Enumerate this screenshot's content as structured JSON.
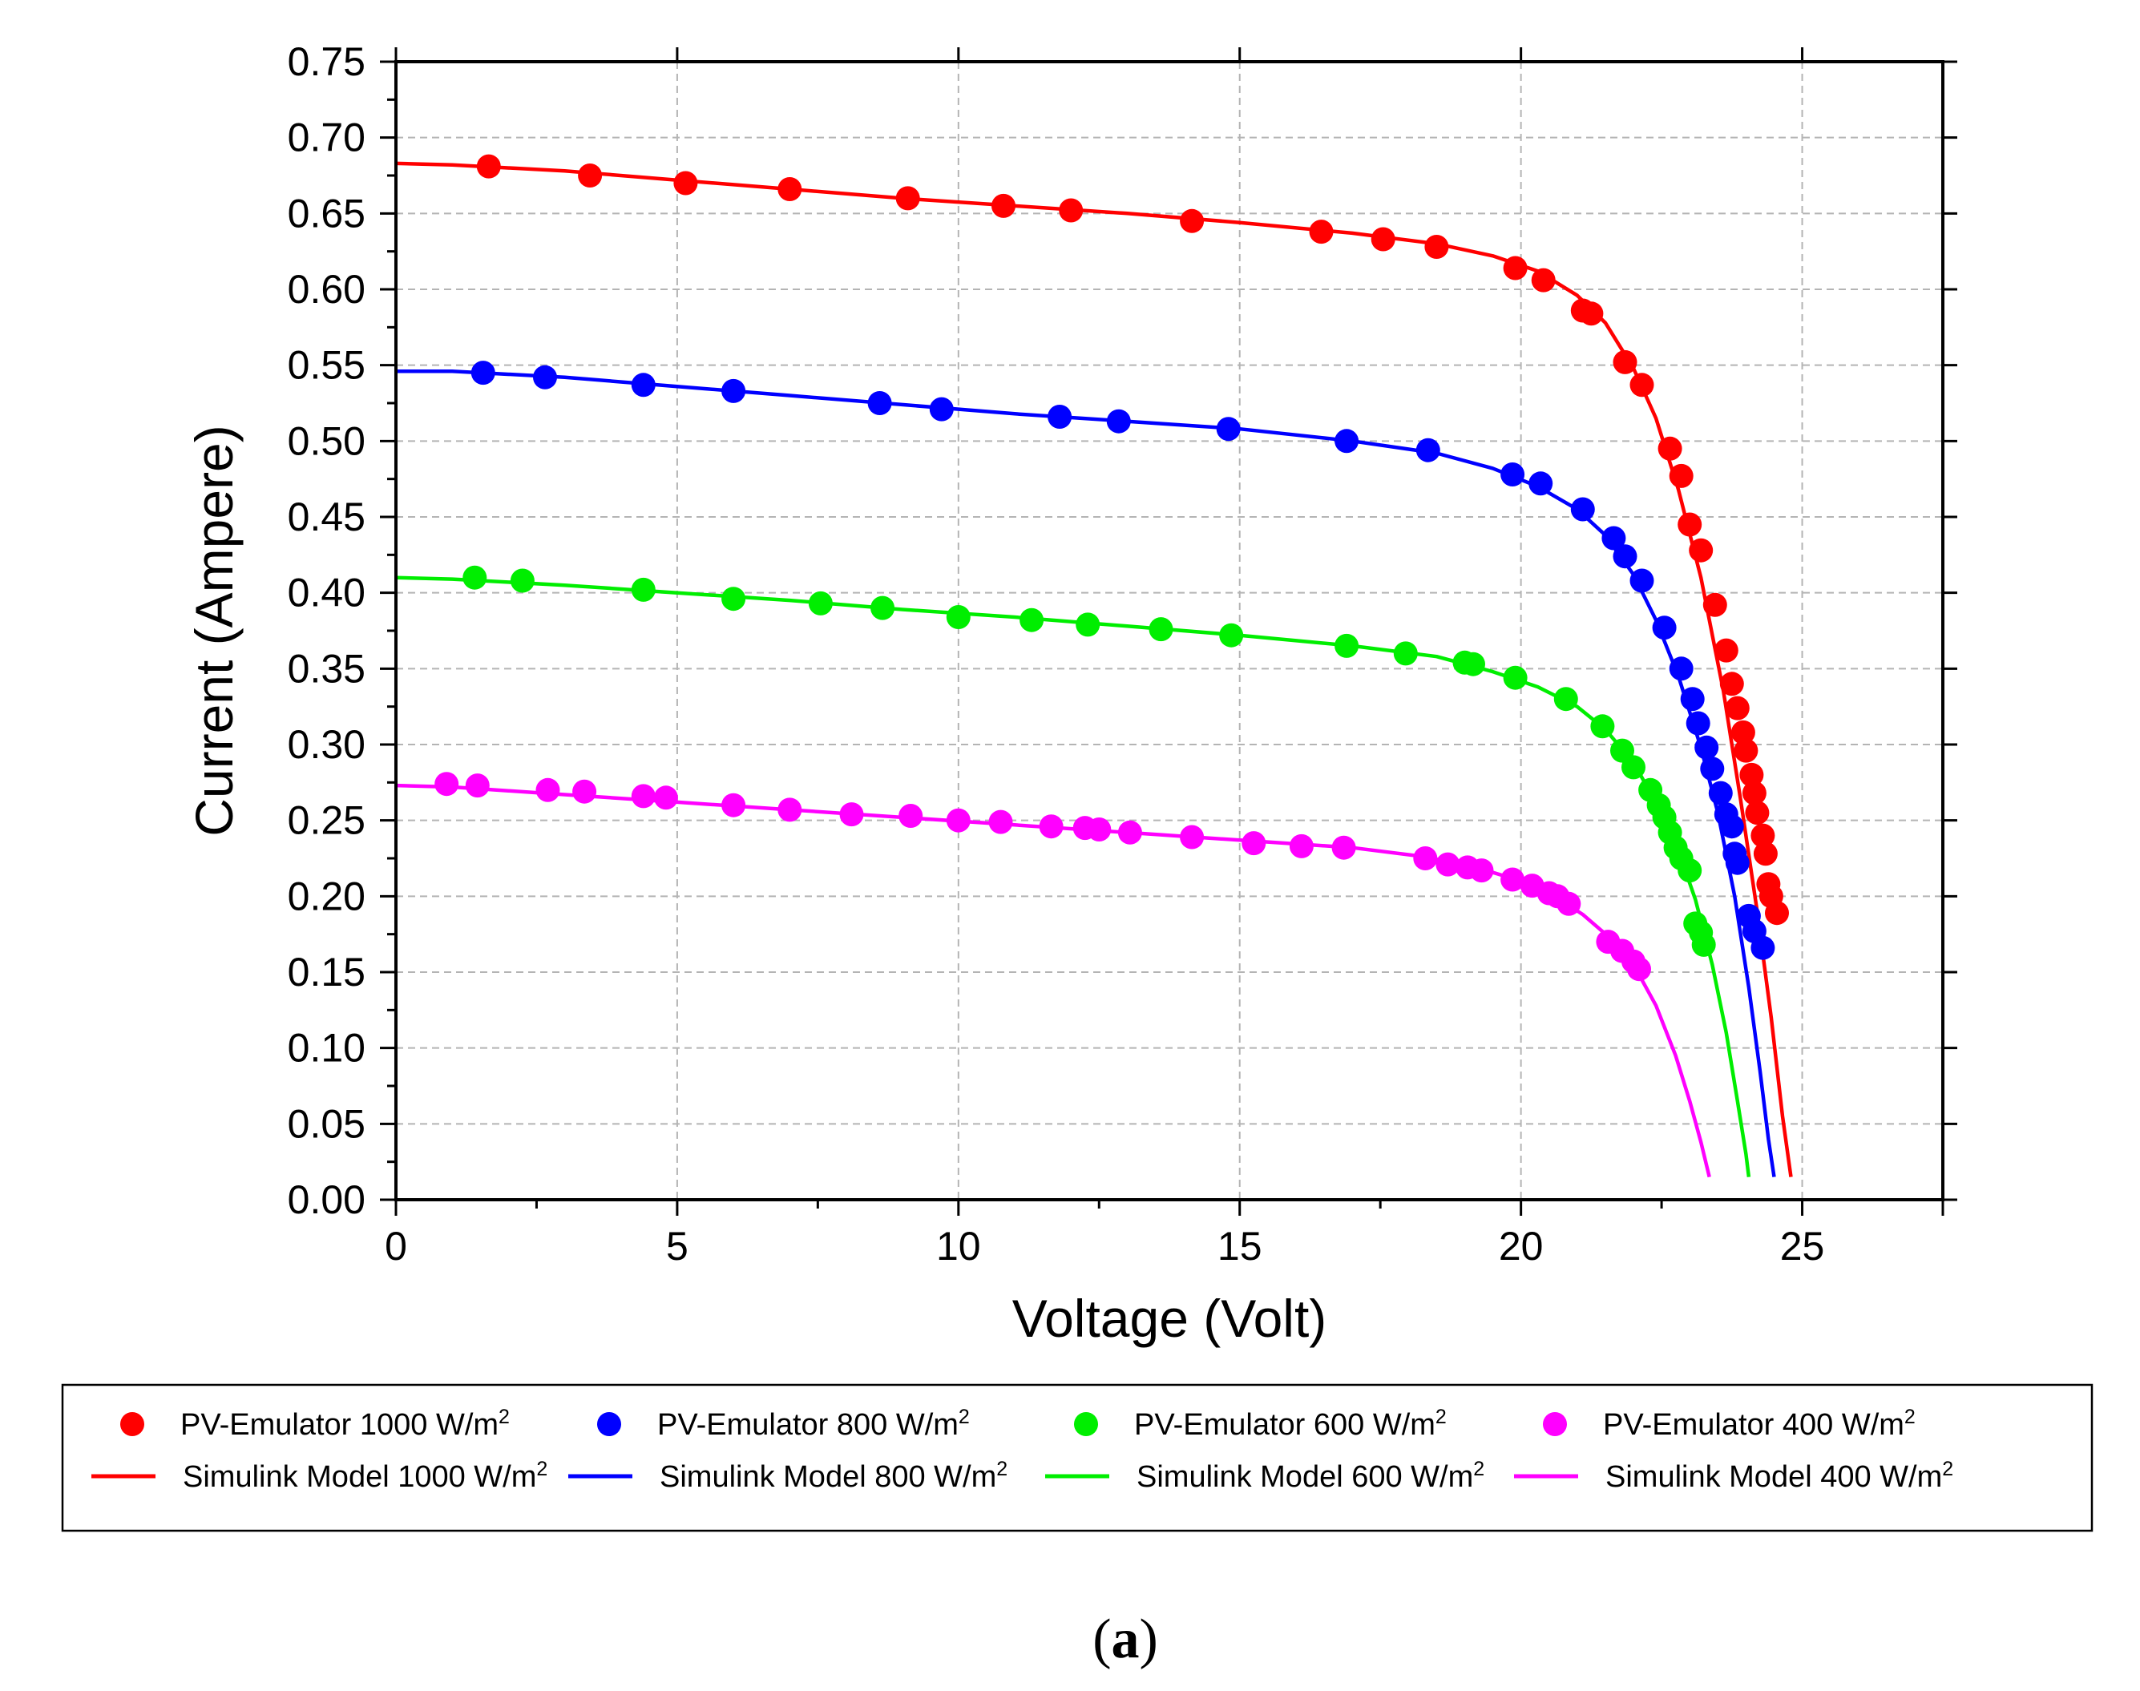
{
  "chart_data": {
    "type": "line",
    "title": "",
    "xlabel": "Voltage (Volt)",
    "ylabel": "Current (Ampere)",
    "xlim": [
      0,
      27.5
    ],
    "ylim": [
      0,
      0.75
    ],
    "xticks": [
      0,
      5,
      10,
      15,
      20,
      25
    ],
    "xtick_labels": [
      "0",
      "5",
      "10",
      "15",
      "20",
      "25"
    ],
    "yticks": [
      0,
      0.05,
      0.1,
      0.15,
      0.2,
      0.25,
      0.3,
      0.35,
      0.4,
      0.45,
      0.5,
      0.55,
      0.6,
      0.65,
      0.7,
      0.75
    ],
    "ytick_labels": [
      "0.00",
      "0.05",
      "0.10",
      "0.15",
      "0.20",
      "0.25",
      "0.30",
      "0.35",
      "0.40",
      "0.45",
      "0.50",
      "0.55",
      "0.60",
      "0.65",
      "0.70",
      "0.75"
    ],
    "grid": true,
    "legend_position": "below",
    "caption_paren_open": "(",
    "caption_letter": "a",
    "caption_paren_close": ")",
    "series": [
      {
        "name": "PV-Emulator 1000 W/m",
        "superscript": "2",
        "type": "scatter",
        "color": "#ff0000",
        "points": [
          [
            1.65,
            0.681
          ],
          [
            3.45,
            0.675
          ],
          [
            5.15,
            0.67
          ],
          [
            7.0,
            0.666
          ],
          [
            9.1,
            0.66
          ],
          [
            10.8,
            0.655
          ],
          [
            12.0,
            0.652
          ],
          [
            14.15,
            0.645
          ],
          [
            16.45,
            0.638
          ],
          [
            17.55,
            0.633
          ],
          [
            18.5,
            0.628
          ],
          [
            19.9,
            0.614
          ],
          [
            20.4,
            0.606
          ],
          [
            21.1,
            0.586
          ],
          [
            21.25,
            0.584
          ],
          [
            21.85,
            0.552
          ],
          [
            22.15,
            0.537
          ],
          [
            22.65,
            0.495
          ],
          [
            22.85,
            0.477
          ],
          [
            23.0,
            0.445
          ],
          [
            23.2,
            0.428
          ],
          [
            23.45,
            0.392
          ],
          [
            23.65,
            0.362
          ],
          [
            23.75,
            0.34
          ],
          [
            23.85,
            0.324
          ],
          [
            23.95,
            0.308
          ],
          [
            24.0,
            0.296
          ],
          [
            24.1,
            0.28
          ],
          [
            24.15,
            0.268
          ],
          [
            24.2,
            0.255
          ],
          [
            24.3,
            0.24
          ],
          [
            24.35,
            0.228
          ],
          [
            24.4,
            0.208
          ],
          [
            24.45,
            0.2
          ],
          [
            24.55,
            0.189
          ]
        ]
      },
      {
        "name": "PV-Emulator  800 W/m",
        "superscript": "2",
        "type": "scatter",
        "color": "#0000ff",
        "points": [
          [
            1.55,
            0.545
          ],
          [
            2.65,
            0.542
          ],
          [
            4.4,
            0.537
          ],
          [
            6.0,
            0.533
          ],
          [
            8.6,
            0.525
          ],
          [
            9.7,
            0.521
          ],
          [
            11.8,
            0.516
          ],
          [
            12.85,
            0.513
          ],
          [
            14.8,
            0.508
          ],
          [
            16.9,
            0.5
          ],
          [
            18.35,
            0.494
          ],
          [
            19.85,
            0.478
          ],
          [
            20.35,
            0.472
          ],
          [
            21.1,
            0.455
          ],
          [
            21.65,
            0.436
          ],
          [
            21.85,
            0.424
          ],
          [
            22.15,
            0.408
          ],
          [
            22.55,
            0.377
          ],
          [
            22.85,
            0.35
          ],
          [
            23.05,
            0.33
          ],
          [
            23.15,
            0.314
          ],
          [
            23.3,
            0.298
          ],
          [
            23.4,
            0.284
          ],
          [
            23.55,
            0.268
          ],
          [
            23.65,
            0.254
          ],
          [
            23.75,
            0.246
          ],
          [
            23.8,
            0.228
          ],
          [
            23.85,
            0.222
          ],
          [
            24.05,
            0.187
          ],
          [
            24.15,
            0.177
          ],
          [
            24.3,
            0.166
          ]
        ]
      },
      {
        "name": "PV-Emulator  600 W/m",
        "superscript": "2",
        "type": "scatter",
        "color": "#00ee00",
        "points": [
          [
            1.4,
            0.41
          ],
          [
            2.25,
            0.408
          ],
          [
            4.4,
            0.402
          ],
          [
            6.0,
            0.396
          ],
          [
            7.55,
            0.393
          ],
          [
            8.65,
            0.39
          ],
          [
            10.0,
            0.384
          ],
          [
            11.3,
            0.382
          ],
          [
            12.3,
            0.379
          ],
          [
            13.6,
            0.376
          ],
          [
            14.85,
            0.372
          ],
          [
            16.9,
            0.365
          ],
          [
            17.95,
            0.36
          ],
          [
            19.0,
            0.354
          ],
          [
            19.15,
            0.353
          ],
          [
            19.9,
            0.344
          ],
          [
            20.8,
            0.33
          ],
          [
            21.45,
            0.312
          ],
          [
            21.8,
            0.296
          ],
          [
            22.0,
            0.285
          ],
          [
            22.3,
            0.27
          ],
          [
            22.45,
            0.26
          ],
          [
            22.55,
            0.252
          ],
          [
            22.65,
            0.242
          ],
          [
            22.75,
            0.232
          ],
          [
            22.85,
            0.225
          ],
          [
            23.0,
            0.217
          ],
          [
            23.1,
            0.182
          ],
          [
            23.2,
            0.176
          ],
          [
            23.25,
            0.168
          ]
        ]
      },
      {
        "name": "PV-Emulator  400 W/m",
        "superscript": "2",
        "type": "scatter",
        "color": "#ff00ff",
        "points": [
          [
            0.9,
            0.274
          ],
          [
            1.45,
            0.273
          ],
          [
            2.7,
            0.27
          ],
          [
            3.35,
            0.269
          ],
          [
            4.4,
            0.266
          ],
          [
            4.8,
            0.265
          ],
          [
            6.0,
            0.26
          ],
          [
            7.0,
            0.257
          ],
          [
            8.1,
            0.254
          ],
          [
            9.15,
            0.253
          ],
          [
            10.0,
            0.25
          ],
          [
            10.75,
            0.249
          ],
          [
            11.65,
            0.246
          ],
          [
            12.25,
            0.245
          ],
          [
            12.5,
            0.244
          ],
          [
            13.05,
            0.242
          ],
          [
            14.15,
            0.239
          ],
          [
            15.25,
            0.235
          ],
          [
            16.1,
            0.233
          ],
          [
            16.85,
            0.232
          ],
          [
            18.3,
            0.225
          ],
          [
            18.7,
            0.221
          ],
          [
            19.05,
            0.219
          ],
          [
            19.3,
            0.217
          ],
          [
            19.85,
            0.211
          ],
          [
            20.2,
            0.207
          ],
          [
            20.5,
            0.202
          ],
          [
            20.65,
            0.2
          ],
          [
            20.85,
            0.195
          ],
          [
            21.55,
            0.17
          ],
          [
            21.8,
            0.164
          ],
          [
            22.0,
            0.157
          ],
          [
            22.1,
            0.152
          ]
        ]
      },
      {
        "name": "Simulink Model 1000 W/m",
        "superscript": "2",
        "type": "line",
        "color": "#ff0000",
        "points": [
          [
            0,
            0.683
          ],
          [
            1,
            0.682
          ],
          [
            3,
            0.678
          ],
          [
            5,
            0.672
          ],
          [
            7,
            0.666
          ],
          [
            9,
            0.66
          ],
          [
            11,
            0.655
          ],
          [
            13,
            0.65
          ],
          [
            15,
            0.644
          ],
          [
            17,
            0.637
          ],
          [
            18.5,
            0.63
          ],
          [
            19.5,
            0.622
          ],
          [
            20.3,
            0.612
          ],
          [
            21.0,
            0.596
          ],
          [
            21.5,
            0.578
          ],
          [
            22.0,
            0.548
          ],
          [
            22.4,
            0.515
          ],
          [
            22.8,
            0.468
          ],
          [
            23.2,
            0.41
          ],
          [
            23.6,
            0.335
          ],
          [
            23.9,
            0.265
          ],
          [
            24.2,
            0.19
          ],
          [
            24.45,
            0.12
          ],
          [
            24.65,
            0.055
          ],
          [
            24.8,
            0.015
          ]
        ]
      },
      {
        "name": "Simulink Model  800 W/m",
        "superscript": "2",
        "type": "line",
        "color": "#0000ff",
        "points": [
          [
            0,
            0.546
          ],
          [
            1,
            0.546
          ],
          [
            3,
            0.542
          ],
          [
            5,
            0.536
          ],
          [
            7,
            0.53
          ],
          [
            9,
            0.524
          ],
          [
            11,
            0.518
          ],
          [
            13,
            0.513
          ],
          [
            15,
            0.508
          ],
          [
            17,
            0.5
          ],
          [
            18.5,
            0.492
          ],
          [
            19.5,
            0.482
          ],
          [
            20.3,
            0.47
          ],
          [
            21.0,
            0.455
          ],
          [
            21.5,
            0.438
          ],
          [
            22.0,
            0.412
          ],
          [
            22.4,
            0.382
          ],
          [
            22.8,
            0.345
          ],
          [
            23.2,
            0.298
          ],
          [
            23.5,
            0.255
          ],
          [
            23.8,
            0.2
          ],
          [
            24.05,
            0.14
          ],
          [
            24.25,
            0.085
          ],
          [
            24.4,
            0.04
          ],
          [
            24.5,
            0.015
          ]
        ]
      },
      {
        "name": "Simulink Model  600 W/m",
        "superscript": "2",
        "type": "line",
        "color": "#00ee00",
        "points": [
          [
            0,
            0.41
          ],
          [
            1,
            0.409
          ],
          [
            3,
            0.405
          ],
          [
            5,
            0.4
          ],
          [
            7,
            0.395
          ],
          [
            9,
            0.389
          ],
          [
            11,
            0.384
          ],
          [
            13,
            0.378
          ],
          [
            15,
            0.372
          ],
          [
            17,
            0.365
          ],
          [
            18.5,
            0.358
          ],
          [
            19.5,
            0.348
          ],
          [
            20.3,
            0.338
          ],
          [
            21.0,
            0.325
          ],
          [
            21.5,
            0.31
          ],
          [
            22.0,
            0.288
          ],
          [
            22.4,
            0.262
          ],
          [
            22.8,
            0.23
          ],
          [
            23.1,
            0.198
          ],
          [
            23.4,
            0.155
          ],
          [
            23.65,
            0.11
          ],
          [
            23.85,
            0.065
          ],
          [
            24.0,
            0.03
          ],
          [
            24.05,
            0.015
          ]
        ]
      },
      {
        "name": "Simulink Model  400 W/m",
        "superscript": "2",
        "type": "line",
        "color": "#ff00ff",
        "points": [
          [
            0,
            0.273
          ],
          [
            1,
            0.272
          ],
          [
            3,
            0.267
          ],
          [
            5,
            0.262
          ],
          [
            7,
            0.257
          ],
          [
            9,
            0.252
          ],
          [
            11,
            0.247
          ],
          [
            13,
            0.242
          ],
          [
            15,
            0.237
          ],
          [
            17,
            0.232
          ],
          [
            18.3,
            0.226
          ],
          [
            19.3,
            0.218
          ],
          [
            20.0,
            0.21
          ],
          [
            20.6,
            0.2
          ],
          [
            21.1,
            0.188
          ],
          [
            21.6,
            0.172
          ],
          [
            22.0,
            0.155
          ],
          [
            22.4,
            0.128
          ],
          [
            22.75,
            0.095
          ],
          [
            23.0,
            0.065
          ],
          [
            23.2,
            0.038
          ],
          [
            23.35,
            0.015
          ]
        ]
      }
    ]
  }
}
